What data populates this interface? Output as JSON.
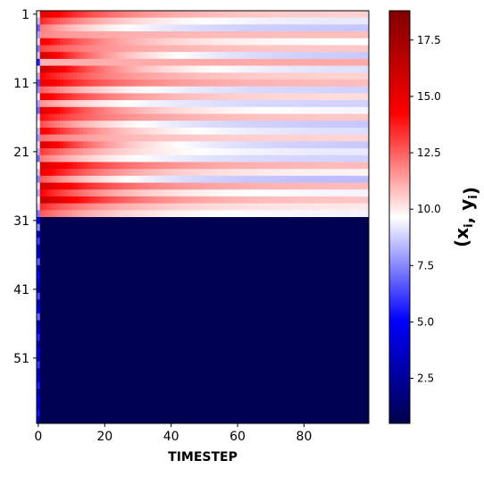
{
  "chart_data": {
    "type": "heatmap",
    "xlabel": "TIMESTEP",
    "ylabel": "",
    "colorbar_label": "(x_i, y_i)",
    "colormap": "seismic",
    "x_range": [
      0,
      99
    ],
    "x_ticks": [
      0,
      20,
      40,
      60,
      80
    ],
    "x_tick_labels": [
      "0",
      "20",
      "40",
      "60",
      "80"
    ],
    "y_range": [
      1,
      60
    ],
    "y_ticks": [
      1,
      11,
      21,
      31,
      41,
      51
    ],
    "y_tick_labels": [
      "1",
      "11",
      "21",
      "31",
      "41",
      "51"
    ],
    "color_range": [
      0.5,
      18.8
    ],
    "colorbar_ticks": [
      2.5,
      5.0,
      7.5,
      10.0,
      12.5,
      15.0,
      17.5
    ],
    "colorbar_tick_labels": [
      "2.5",
      "5.0",
      "7.5",
      "10.0",
      "12.5",
      "15.0",
      "17.5"
    ],
    "row_start_values": [
      15.2,
      13.5,
      12.0,
      11.8,
      14.6,
      13.0,
      15.6,
      11.0,
      16.2,
      14.2,
      15.0,
      12.5,
      14.8,
      11.6,
      15.4,
      14.0,
      12.8,
      14.6,
      12.2,
      15.6,
      13.2,
      12.0,
      15.6,
      14.8,
      12.6,
      15.8,
      14.2,
      16.4,
      13.4,
      12.6
    ],
    "row_end_values": [
      10.4,
      9.2,
      8.6,
      10.8,
      9.6,
      10.6,
      8.6,
      11.2,
      9.0,
      10.4,
      10.8,
      8.8,
      10.2,
      8.8,
      9.4,
      10.6,
      8.6,
      9.0,
      10.4,
      8.6,
      9.2,
      8.8,
      10.8,
      9.8,
      8.4,
      10.8,
      9.4,
      10.6,
      10.0,
      9.4
    ],
    "lower_rows_value": 0.6,
    "first_column_values": [
      9.8,
      8.4,
      6.8,
      8.0,
      9.0,
      7.2,
      8.6,
      5.6,
      9.4,
      8.2,
      6.6,
      7.6,
      9.2,
      8.0,
      7.0,
      8.8,
      9.6,
      8.4,
      7.8,
      9.0,
      8.2,
      7.0,
      9.6,
      8.6,
      7.4,
      9.0,
      8.2,
      9.8,
      8.8,
      7.2,
      4.6,
      7.6,
      3.8,
      6.2,
      3.2,
      4.4,
      6.8,
      3.4,
      5.2,
      4.0,
      3.0,
      6.4,
      3.6,
      4.8,
      7.0,
      3.2,
      4.4,
      5.8,
      3.0,
      5.0,
      3.8,
      6.0,
      3.4,
      4.2,
      5.6,
      3.0,
      4.6,
      3.6,
      5.4,
      3.0
    ]
  }
}
